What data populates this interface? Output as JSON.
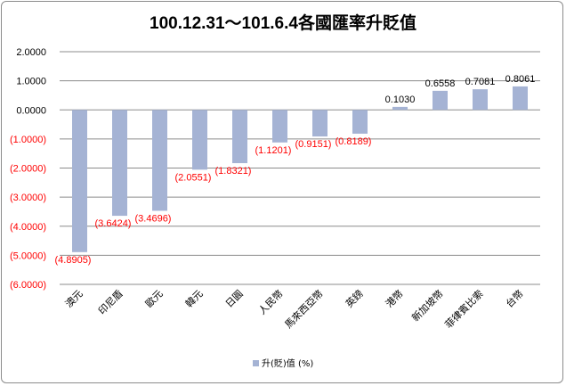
{
  "chart_data": {
    "type": "bar",
    "title": "100.12.31～101.6.4各國匯率升貶值",
    "categories": [
      "澳元",
      "印尼盾",
      "歐元",
      "韓元",
      "日圓",
      "人民幣",
      "馬來西亞幣",
      "英鎊",
      "港幣",
      "新加坡幣",
      "菲律賓比索",
      "台幣"
    ],
    "series": [
      {
        "name": "升(貶)值 (%)",
        "values": [
          -4.8905,
          -3.6424,
          -3.4696,
          -2.0551,
          -1.8321,
          -1.1201,
          -0.9151,
          -0.8189,
          0.103,
          0.6558,
          0.7081,
          0.8061
        ],
        "labels": [
          "(4.8905)",
          "(3.6424)",
          "(3.4696)",
          "(2.0551)",
          "(1.8321)",
          "(1.1201)",
          "(0.9151)",
          "(0.8189)",
          "0.1030",
          "0.6558",
          "0.7081",
          "0.8061"
        ]
      }
    ],
    "y_ticks": [
      2,
      1,
      0,
      -1,
      -2,
      -3,
      -4,
      -5,
      -6
    ],
    "y_tick_labels": [
      "2.0000",
      "1.0000",
      "0.0000",
      "(1.0000)",
      "(2.0000)",
      "(3.0000)",
      "(4.0000)",
      "(5.0000)",
      "(6.0000)"
    ],
    "ylim": [
      -6,
      2
    ],
    "grid": true,
    "legend_position": "bottom",
    "colors": {
      "bar": "#a5b3d4",
      "negative_text": "#ff0000",
      "positive_text": "#000000",
      "grid": "#8c8c8c",
      "frame": "#8c8c8c"
    }
  }
}
